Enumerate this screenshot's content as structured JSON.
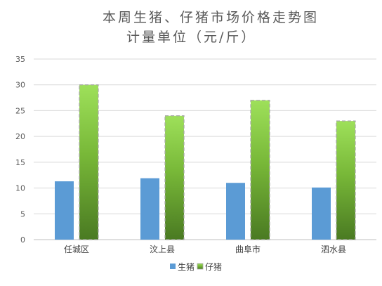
{
  "chart_data": {
    "type": "bar",
    "title_lines": [
      "本周生猪、仔猪市场价格走势图",
      "计量单位（元/斤）"
    ],
    "categories": [
      "任城区",
      "汶上县",
      "曲阜市",
      "泗水县"
    ],
    "series": [
      {
        "name": "生猪",
        "values": [
          11.3,
          11.9,
          11.0,
          10.1
        ],
        "color": "#5b9bd5"
      },
      {
        "name": "仔猪",
        "values": [
          30,
          24,
          27,
          23
        ],
        "color": "#92d050"
      }
    ],
    "ylim": [
      0,
      35
    ],
    "yticks": [
      0,
      5,
      10,
      15,
      20,
      25,
      30,
      35
    ],
    "grid": true,
    "legend_position": "bottom"
  }
}
